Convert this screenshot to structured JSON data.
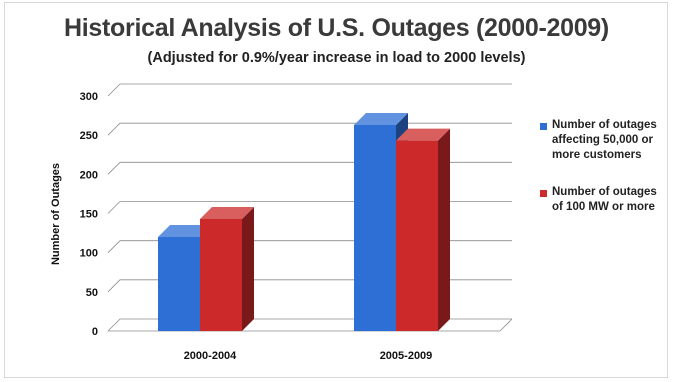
{
  "chart_data": {
    "type": "bar",
    "title": "Historical Analysis of U.S. Outages (2000-2009)",
    "subtitle": "(Adjusted for 0.9%/year increase in load to 2000 levels)",
    "ylabel": "Number of Outages",
    "xlabel": "",
    "categories": [
      "2000-2004",
      "2005-2009"
    ],
    "series": [
      {
        "name": "Number of outages affecting 50,000 or more customers",
        "values": [
          120,
          263
        ],
        "color": "#2e6fd6"
      },
      {
        "name": "Number of outages of 100 MW or more",
        "values": [
          143,
          243
        ],
        "color": "#cc2a2a"
      }
    ],
    "ylim": [
      0,
      300
    ],
    "yticks": [
      "0",
      "50",
      "100",
      "150",
      "200",
      "250",
      "300"
    ],
    "grid": true,
    "legend": "right",
    "style": "3d"
  }
}
